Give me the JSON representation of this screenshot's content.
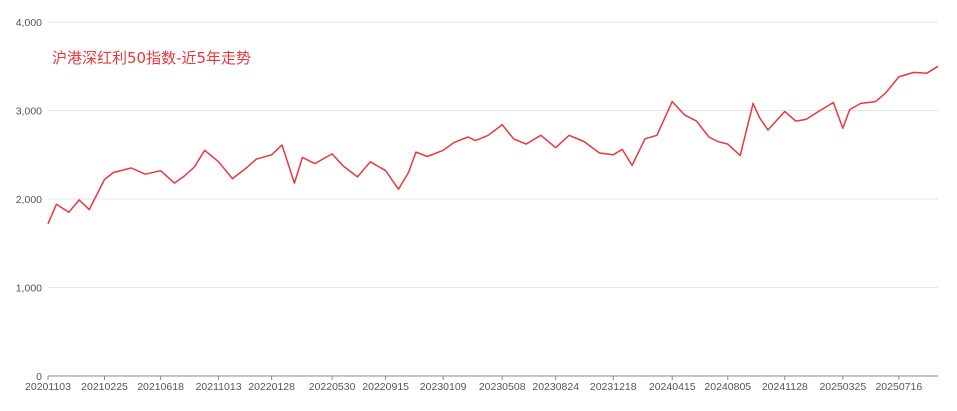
{
  "colors": {
    "line": "#e8383d",
    "grid": "#e6e6e6",
    "axis": "#8c8c8c",
    "label": "#555555",
    "background": "#ffffff"
  },
  "chart_data": {
    "type": "line",
    "title": "沪港深红利50指数-近5年走势",
    "xlabel": "",
    "ylabel": "",
    "ylim": [
      0,
      4000
    ],
    "y_ticks": [
      "0",
      "1,000",
      "2,000",
      "3,000",
      "4,000"
    ],
    "y_tick_values": [
      0,
      1000,
      2000,
      3000,
      4000
    ],
    "x_tick_labels": [
      "20201103",
      "20210225",
      "20210618",
      "20211013",
      "20220128",
      "20220530",
      "20220915",
      "20230109",
      "20230508",
      "20230824",
      "20231218",
      "20240415",
      "20240805",
      "20241128",
      "20250325",
      "20250716"
    ],
    "grid": true,
    "legend": "none",
    "series": [
      {
        "x": [
          "20201103",
          "20201120",
          "20201215",
          "20210105",
          "20210125",
          "20210225",
          "20210315",
          "20210420",
          "20210518",
          "20210618",
          "20210716",
          "20210805",
          "20210825",
          "20210915",
          "20211013",
          "20211110",
          "20211206",
          "20211228",
          "20220128",
          "20220218",
          "20220315",
          "20220331",
          "20220425",
          "20220530",
          "20220620",
          "20220720",
          "20220815",
          "20220915",
          "20221011",
          "20221031",
          "20221115",
          "20221208",
          "20230109",
          "20230131",
          "20230228",
          "20230315",
          "20230410",
          "20230508",
          "20230531",
          "20230625",
          "20230725",
          "20230824",
          "20230920",
          "20231020",
          "20231120",
          "20231218",
          "20240105",
          "20240125",
          "20240220",
          "20240315",
          "20240415",
          "20240510",
          "20240603",
          "20240628",
          "20240716",
          "20240805",
          "20240830",
          "20240925",
          "20241008",
          "20241025",
          "20241128",
          "20241220",
          "20250110",
          "20250210",
          "20250306",
          "20250325",
          "20250408",
          "20250430",
          "20250530",
          "20250620",
          "20250716",
          "20250815",
          "20250910",
          "20251003"
        ],
        "y": [
          1720,
          1940,
          1850,
          1990,
          1880,
          2220,
          2300,
          2350,
          2280,
          2320,
          2180,
          2260,
          2360,
          2550,
          2420,
          2230,
          2340,
          2450,
          2500,
          2610,
          2180,
          2470,
          2400,
          2510,
          2380,
          2250,
          2420,
          2320,
          2110,
          2300,
          2530,
          2480,
          2550,
          2640,
          2700,
          2660,
          2720,
          2840,
          2680,
          2620,
          2720,
          2580,
          2720,
          2650,
          2520,
          2500,
          2560,
          2380,
          2680,
          2720,
          3100,
          2950,
          2880,
          2700,
          2650,
          2620,
          2490,
          3080,
          2920,
          2780,
          2990,
          2880,
          2900,
          3010,
          3090,
          2800,
          3010,
          3080,
          3100,
          3200,
          3380,
          3430,
          3420,
          3500
        ]
      }
    ]
  }
}
